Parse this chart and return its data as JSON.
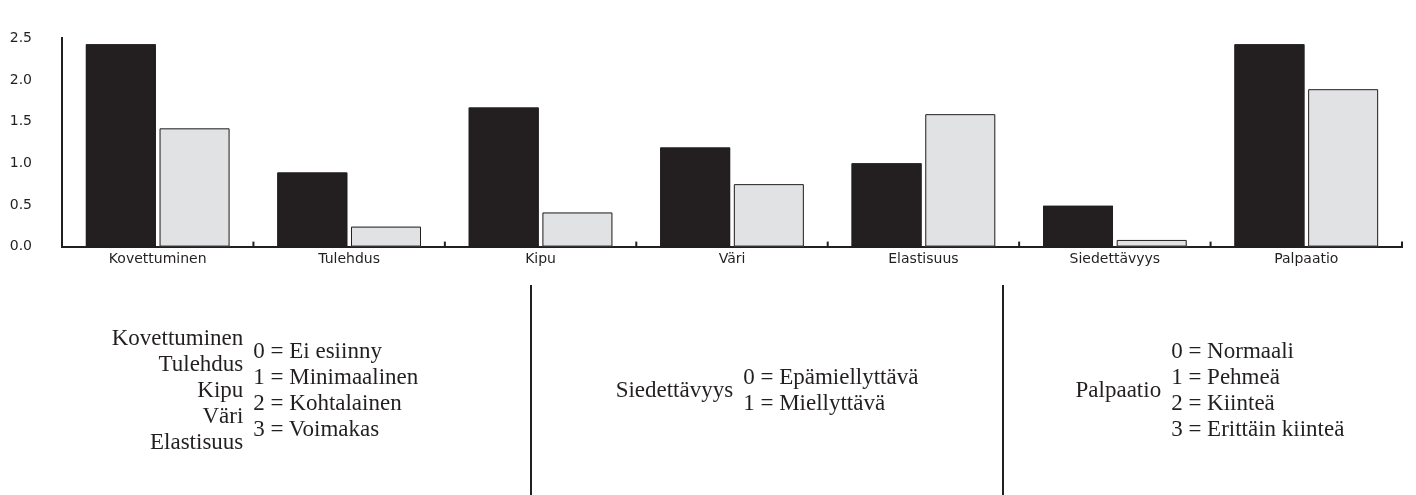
{
  "chart_data": {
    "type": "bar",
    "categories": [
      "Kovettuminen",
      "Tulehdus",
      "Kipu",
      "Väri",
      "Elastisuus",
      "Siedettävyys",
      "Palpaatio"
    ],
    "series": [
      {
        "color": "#231f20",
        "values": [
          2.43,
          0.89,
          1.67,
          1.19,
          1.0,
          0.49,
          2.43
        ]
      },
      {
        "color": "#e1e2e3",
        "values": [
          1.42,
          0.24,
          0.41,
          0.75,
          1.59,
          0.08,
          1.89
        ]
      }
    ],
    "ylim": [
      0,
      2.5
    ],
    "yticks": [
      {
        "value": 0,
        "label": "0.0"
      },
      {
        "value": 0.5,
        "label": "0.5"
      },
      {
        "value": 1,
        "label": "1.0"
      },
      {
        "value": 1.5,
        "label": "1.5"
      },
      {
        "value": 2,
        "label": "2.0"
      },
      {
        "value": 2.5,
        "label": "2.5"
      }
    ],
    "grid": false,
    "legend": false,
    "annotations": [
      "Kovettuminen\nTulehdus\nKipu\nVäri\nElastisuus",
      "0 = Ei esiinny\n1 = Minimaalinen\n2 = Kohtalainen\n3 = Voimakas",
      "Siedettävyys",
      "0 = Epämiellyttävä\n1 = Miellyttävä",
      "Palpaatio",
      "0 = Normaali\n1 = Pehmeä\n2 = Kiinteä\n3 = Erittäin kiinteä"
    ]
  }
}
